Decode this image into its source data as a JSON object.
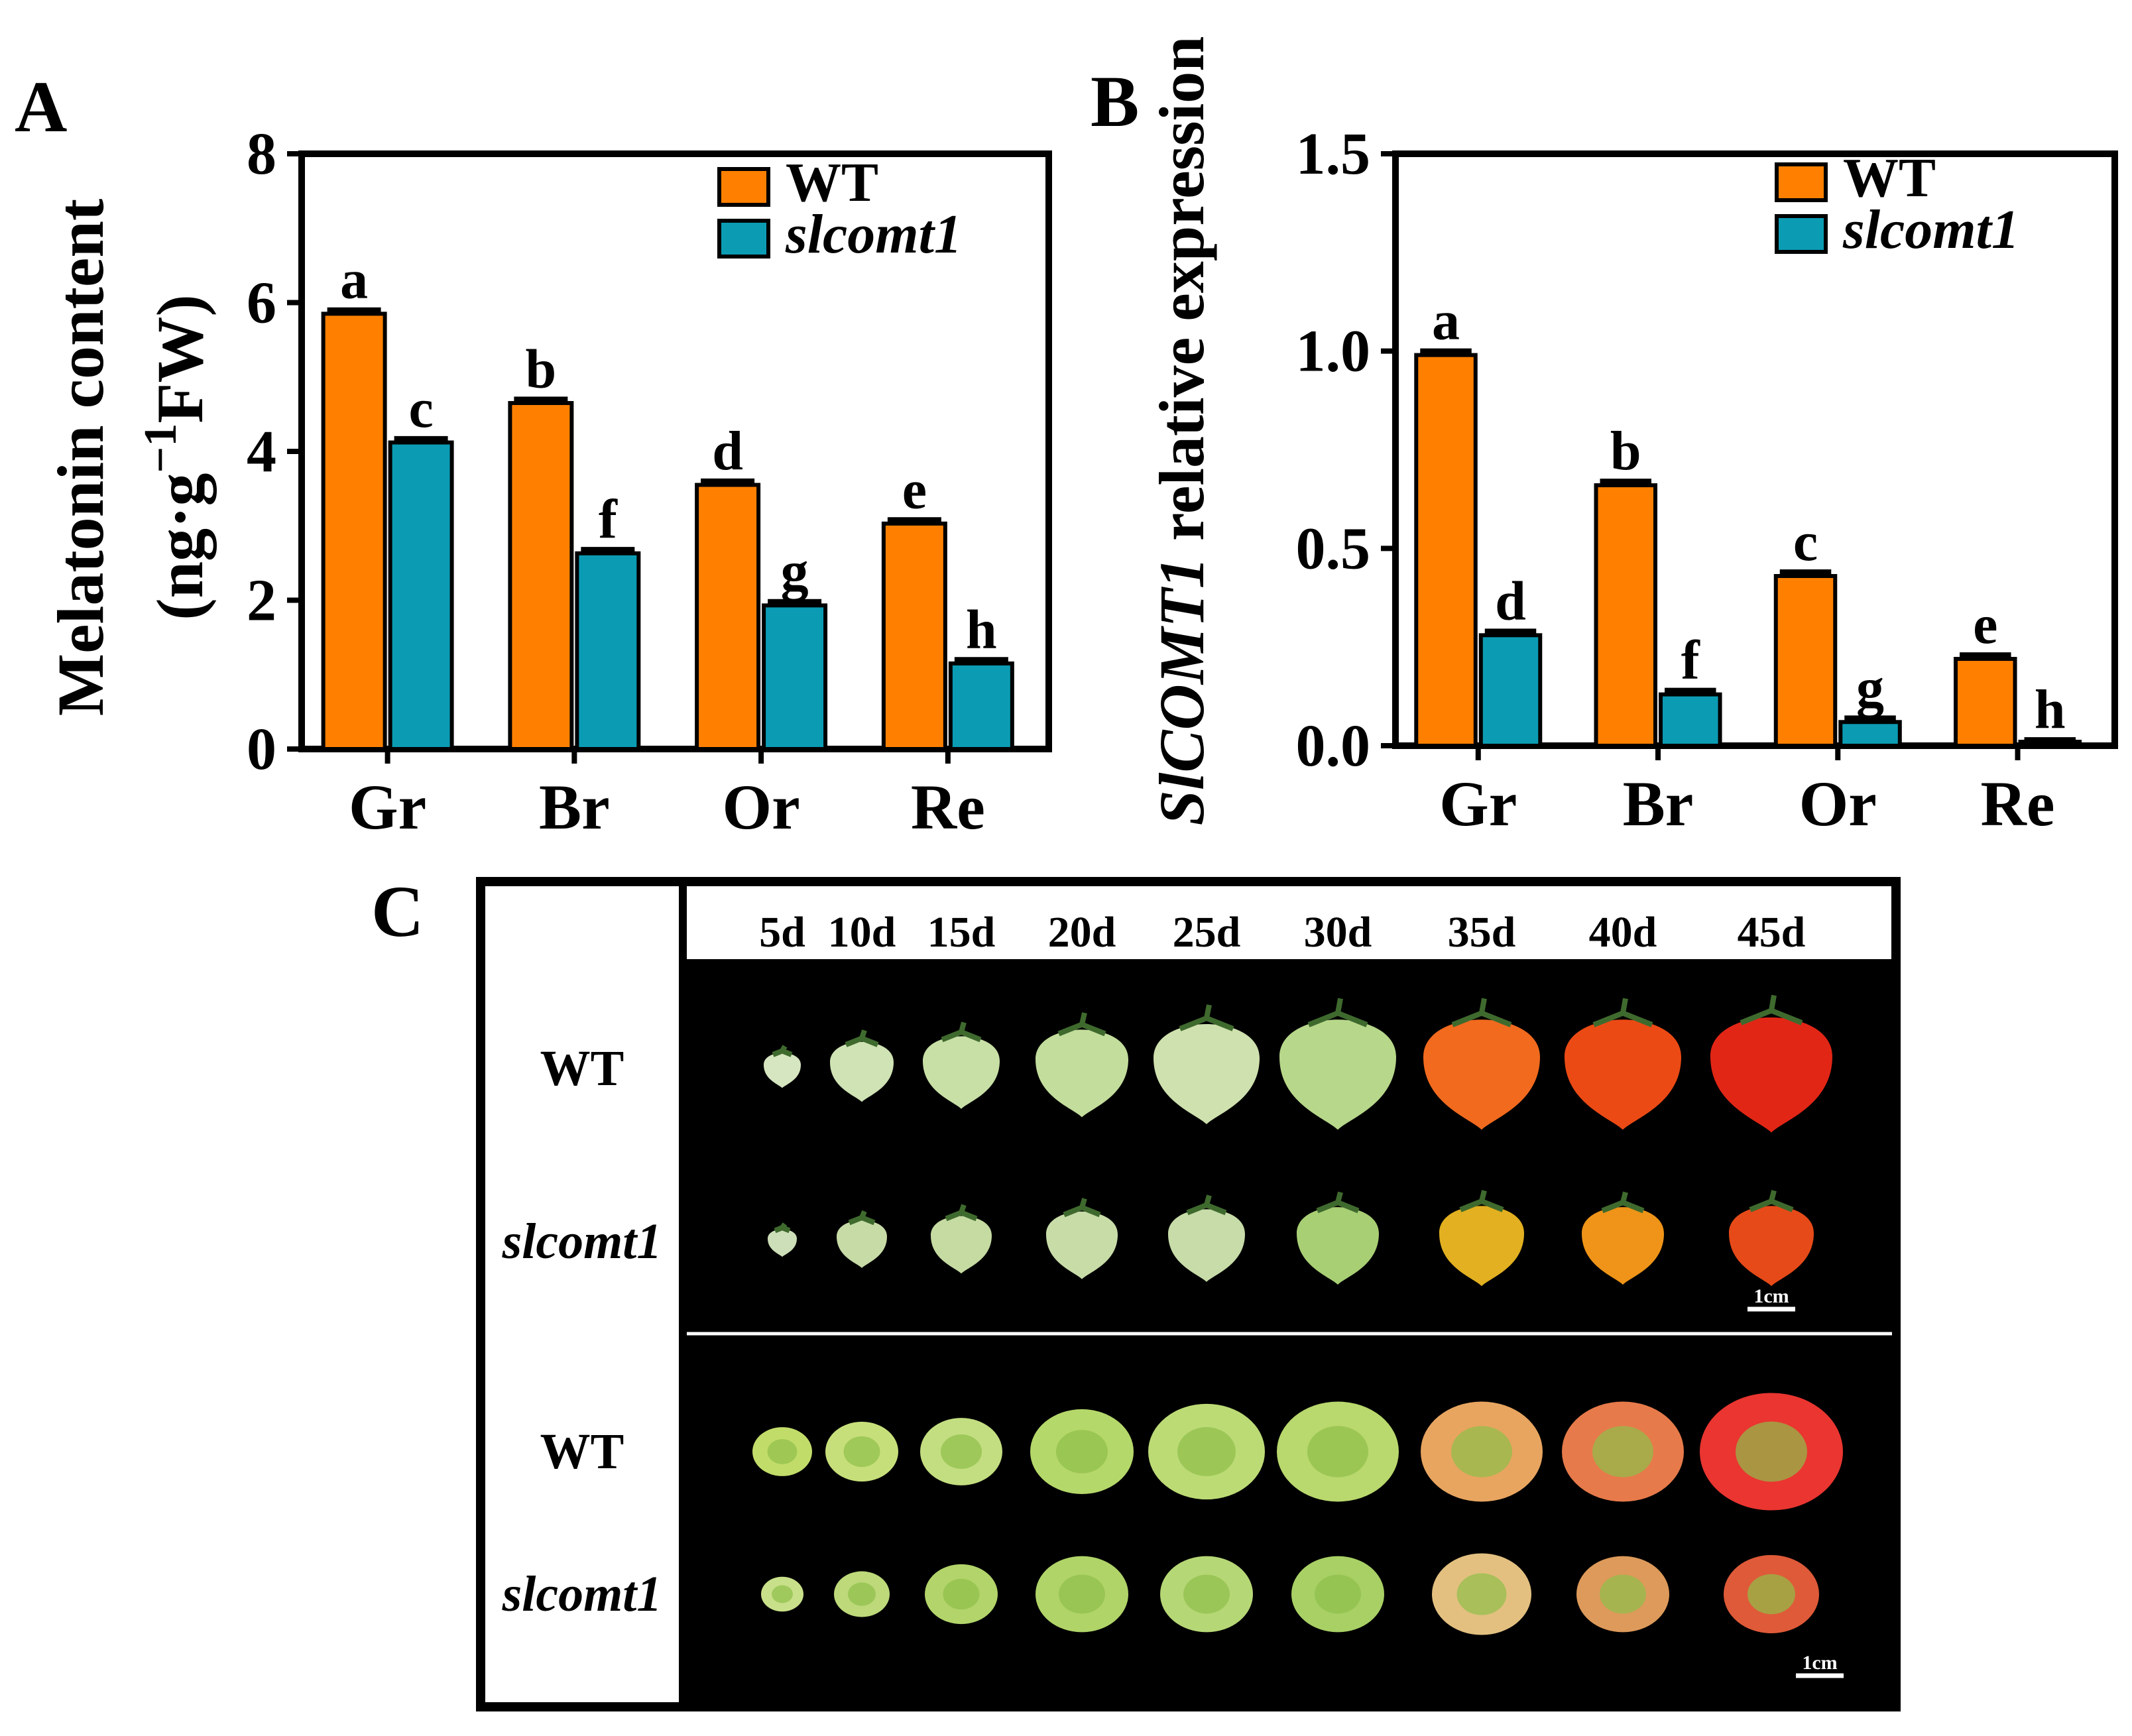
{
  "figure": {
    "panel_a_letter": "A",
    "panel_b_letter": "B",
    "panel_c_letter": "C",
    "colors": {
      "wt": "#FF8000",
      "mutant": "#0B9CB4",
      "axis": "#000000",
      "photo_bg": "#000000"
    }
  },
  "chart_data": [
    {
      "type": "bar",
      "panel": "A",
      "title": "",
      "xlabel": "",
      "ylabel_line1": "Melatonin content",
      "ylabel_line2_pre": "(ng·g",
      "ylabel_sup": "−1",
      "ylabel_line2_post": "FW)",
      "ylim": [
        0,
        8
      ],
      "yticks": [
        "0",
        "2",
        "4",
        "6",
        "8"
      ],
      "categories": [
        "Gr",
        "Br",
        "Or",
        "Re"
      ],
      "legend": {
        "position": "top-right",
        "entries": [
          "WT",
          "slcomt1"
        ]
      },
      "series": [
        {
          "name": "WT",
          "values": [
            5.85,
            4.65,
            3.55,
            3.03
          ],
          "errors": [
            0.05,
            0.05,
            0.05,
            0.05
          ],
          "letters": [
            "a",
            "b",
            "d",
            "e"
          ]
        },
        {
          "name": "slcomt1",
          "values": [
            4.12,
            2.63,
            1.93,
            1.15
          ],
          "errors": [
            0.05,
            0.05,
            0.05,
            0.05
          ],
          "letters": [
            "c",
            "f",
            "g",
            "h"
          ]
        }
      ]
    },
    {
      "type": "bar",
      "panel": "B",
      "title": "",
      "xlabel": "",
      "ylabel_italic": "SlCOMT1",
      "ylabel_rest": " relative  expression",
      "ylim": [
        0,
        1.5
      ],
      "yticks": [
        "0.0",
        "0.5",
        "1.0",
        "1.5"
      ],
      "categories": [
        "Gr",
        "Br",
        "Or",
        "Re"
      ],
      "legend": {
        "position": "top-right",
        "entries": [
          "WT",
          "slcomt1"
        ]
      },
      "series": [
        {
          "name": "WT",
          "values": [
            0.99,
            0.66,
            0.43,
            0.22
          ],
          "errors": [
            0.01,
            0.01,
            0.01,
            0.01
          ],
          "letters": [
            "a",
            "b",
            "c",
            "e"
          ]
        },
        {
          "name": "slcomt1",
          "values": [
            0.28,
            0.13,
            0.06,
            0.01
          ],
          "errors": [
            0.01,
            0.01,
            0.01,
            0.005
          ],
          "letters": [
            "d",
            "f",
            "g",
            "h"
          ]
        }
      ]
    }
  ],
  "panel_c": {
    "days": [
      "5d",
      "10d",
      "15d",
      "20d",
      "25d",
      "30d",
      "35d",
      "40d",
      "45d"
    ],
    "row_labels": [
      "WT",
      "slcomt1",
      "WT",
      "slcomt1"
    ],
    "scale_bar_label": "1cm",
    "fruit_colors": {
      "wt_whole": [
        "#d6e6c0",
        "#cfe3b4",
        "#c8e0a6",
        "#c3dd9c",
        "#cfe1ae",
        "#b7d78a",
        "#f26a1e",
        "#ec4a14",
        "#e22616"
      ],
      "mut_whole": [
        "#cddfb8",
        "#c7dba6",
        "#c5dba2",
        "#c8dca8",
        "#c7dca8",
        "#a8cf74",
        "#e2b020",
        "#ef9418",
        "#e64a18"
      ],
      "wt_cut": [
        "#c2dc6a",
        "#c7df7a",
        "#c3de80",
        "#b5d86a",
        "#bcdb75",
        "#b9d86d",
        "#e8a560",
        "#e77a4a",
        "#ea3530"
      ],
      "mut_cut": [
        "#c9e08a",
        "#bdd97a",
        "#b2d46a",
        "#b0d468",
        "#b6d776",
        "#a8d065",
        "#e3c080",
        "#dd9a5a",
        "#df5a38"
      ]
    }
  }
}
